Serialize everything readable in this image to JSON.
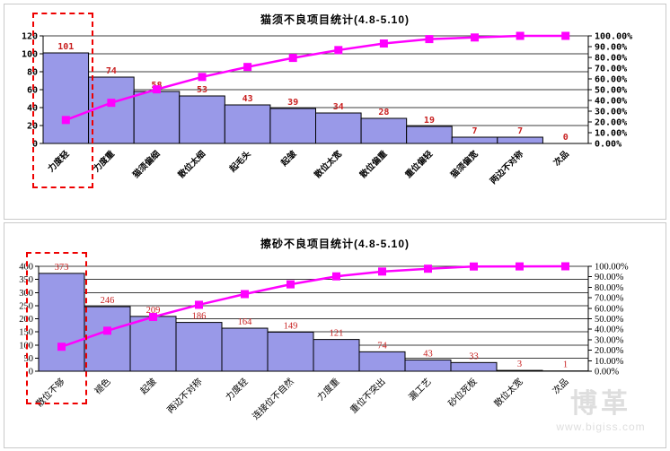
{
  "page": {
    "background": "#FFFFFF"
  },
  "colors": {
    "bar_fill": "#9999E8",
    "bar_border": "#000000",
    "cumulative_line": "#FF00FF",
    "value_label": "#C82020",
    "grid_line": "#3C3C3C",
    "highlight_box": "#EE0000",
    "panel_border": "#C9C9C9",
    "watermark": "#DEDEDE"
  },
  "watermark": {
    "logo_text": "博革",
    "url": "www.bigiss.com"
  },
  "annotations": {
    "highlight_boxes": [
      {
        "chart": 1,
        "style": "red dashed rectangle",
        "covers": "第1条柱及标签 力度轻 / 力度重"
      },
      {
        "chart": 2,
        "style": "red dashed rectangle",
        "covers": "第1条柱及标签 散位不够"
      }
    ]
  },
  "chart_data": [
    {
      "type": "bar",
      "subtype": "pareto (bar + cumulative % line)",
      "title": "猫须不良项目统计(4.8-5.10)",
      "xlabel": "",
      "ylabel": "",
      "categories": [
        "力度轻",
        "力度重",
        "猫须偏细",
        "散位太细",
        "起毛头",
        "起皱",
        "散位太宽",
        "散位偏重",
        "重位偏轻",
        "猫须偏宽",
        "两边不对称",
        "次品"
      ],
      "values": [
        101,
        74,
        58,
        53,
        43,
        39,
        34,
        28,
        19,
        7,
        7,
        0
      ],
      "cumulative_percent": [
        21.8,
        37.8,
        50.3,
        61.8,
        71.1,
        79.5,
        86.8,
        92.9,
        97.0,
        98.5,
        100.0,
        100.0
      ],
      "ylim": [
        0,
        120
      ],
      "ytick_step": 20,
      "y2lim": [
        0,
        100
      ],
      "y2tick_step": 10,
      "y2_format": "0.00%",
      "grid": "horizontal",
      "legend": "none"
    },
    {
      "type": "bar",
      "subtype": "pareto (bar + cumulative % line)",
      "title": "擦砂不良项目统计(4.8-5.10)",
      "xlabel": "",
      "ylabel": "",
      "categories": [
        "散位不够",
        "褪色",
        "起皱",
        "两边不对称",
        "力度轻",
        "连接位不自然",
        "力度重",
        "重位不突出",
        "漏工艺",
        "砂位死板",
        "散位太宽",
        "次品"
      ],
      "values": [
        373,
        246,
        209,
        186,
        164,
        149,
        121,
        74,
        43,
        33,
        3,
        1
      ],
      "cumulative_percent": [
        23.3,
        38.6,
        51.7,
        63.3,
        73.5,
        82.8,
        90.4,
        95.0,
        97.7,
        99.8,
        99.9,
        100.0
      ],
      "ylim": [
        0,
        400
      ],
      "ytick_step": 50,
      "y2lim": [
        0,
        100
      ],
      "y2tick_step": 10,
      "y2_format": "0.00%",
      "grid": "horizontal",
      "legend": "none"
    }
  ]
}
